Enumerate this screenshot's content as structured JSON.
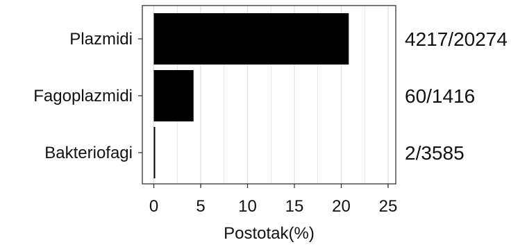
{
  "chart_data": {
    "type": "bar",
    "orientation": "horizontal",
    "categories": [
      "Plazmidi",
      "Fagoplazmidi",
      "Bakteriofagi"
    ],
    "values": [
      20.8,
      4.24,
      0.06
    ],
    "annotations": [
      "4217/20274",
      "60/1416",
      "2/3585"
    ],
    "xlabel": "Postotak(%)",
    "ylabel": "",
    "xlim": [
      -1,
      26
    ],
    "xticks": [
      0,
      5,
      10,
      15,
      20,
      25
    ],
    "grid": true,
    "bar_color": "#000000",
    "grid_color": "#dddddd",
    "frame_color": "#333333"
  }
}
